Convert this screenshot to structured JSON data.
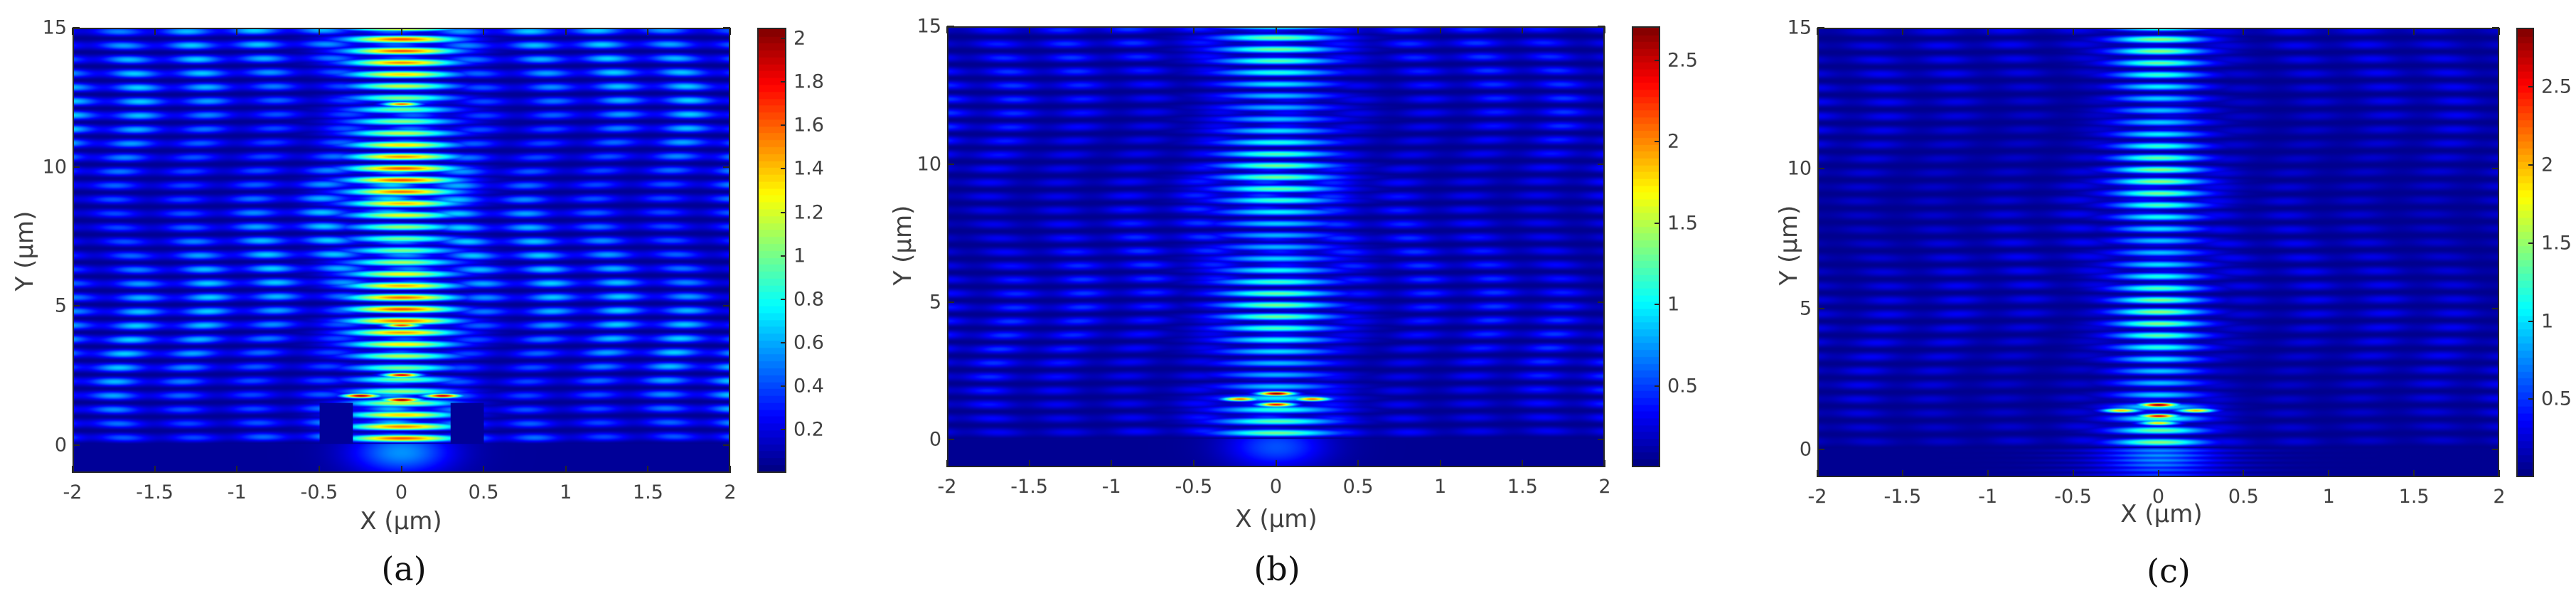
{
  "figure": {
    "panels": [
      {
        "id": "a",
        "label": "(a)",
        "xlabel": "X (μm)",
        "ylabel": "Y (μm)"
      },
      {
        "id": "b",
        "label": "(b)",
        "xlabel": "X (μm)",
        "ylabel": "Y (μm)"
      },
      {
        "id": "c",
        "label": "(c)",
        "xlabel": "X (μm)",
        "ylabel": "Y (μm)"
      }
    ]
  },
  "chart_data": [
    {
      "type": "heatmap",
      "panel_label": "(a)",
      "title": "",
      "xlabel": "X (μm)",
      "ylabel": "Y (μm)",
      "xlim": [
        -2,
        2
      ],
      "ylim": [
        -1,
        15
      ],
      "xticks": [
        -2,
        -1.5,
        -1,
        -0.5,
        0,
        0.5,
        1,
        1.5,
        2
      ],
      "xtick_labels": [
        "-2",
        "-1.5",
        "-1",
        "-0.5",
        "0",
        "0.5",
        "1",
        "1.5",
        "2"
      ],
      "yticks": [
        0,
        5,
        10,
        15
      ],
      "ytick_labels": [
        "0",
        "5",
        "10",
        "15"
      ],
      "colormap": "jet",
      "colorbar": {
        "range": [
          0,
          2.05
        ],
        "ticks": [
          0.2,
          0.4,
          0.6,
          0.8,
          1,
          1.2,
          1.4,
          1.6,
          1.8,
          2
        ],
        "tick_labels": [
          "0.2",
          "0.4",
          "0.6",
          "0.8",
          "1",
          "1.2",
          "1.4",
          "1.6",
          "1.8",
          "2"
        ]
      },
      "features": {
        "central_beam_halfwidth": 0.35,
        "central_beam_peak": 1.6,
        "background_level": 0.65,
        "hotspots": [
          [
            -0.25,
            1.75,
            2.0
          ],
          [
            0.0,
            1.6,
            2.05
          ],
          [
            0.25,
            1.75,
            1.95
          ],
          [
            0.0,
            2.5,
            1.9
          ],
          [
            0.0,
            4.3,
            1.7
          ],
          [
            0.0,
            12.3,
            1.6
          ]
        ],
        "substrate_below_y": 0,
        "pillar_gaps": [
          [
            -0.5,
            -0.3
          ],
          [
            0.3,
            0.5
          ]
        ],
        "pillar_top_y": 1.5
      },
      "grid": false,
      "legend": "colorbar-right"
    },
    {
      "type": "heatmap",
      "panel_label": "(b)",
      "title": "",
      "xlabel": "X (μm)",
      "ylabel": "Y (μm)",
      "xlim": [
        -2,
        2
      ],
      "ylim": [
        -1,
        15
      ],
      "xticks": [
        -2,
        -1.5,
        -1,
        -0.5,
        0,
        0.5,
        1,
        1.5,
        2
      ],
      "xtick_labels": [
        "-2",
        "-1.5",
        "-1",
        "-0.5",
        "0",
        "0.5",
        "1",
        "1.5",
        "2"
      ],
      "yticks": [
        0,
        5,
        10,
        15
      ],
      "ytick_labels": [
        "0",
        "5",
        "10",
        "15"
      ],
      "colormap": "jet",
      "colorbar": {
        "range": [
          0,
          2.71
        ],
        "ticks": [
          0.5,
          1,
          1.5,
          2,
          2.5
        ],
        "tick_labels": [
          "0.5",
          "1",
          "1.5",
          "2",
          "2.5"
        ]
      },
      "features": {
        "central_beam_halfwidth": 0.4,
        "central_beam_peak": 1.3,
        "background_level": 0.45,
        "hotspots": [
          [
            0.0,
            1.65,
            2.7
          ],
          [
            -0.22,
            1.45,
            2.1
          ],
          [
            0.22,
            1.45,
            2.1
          ],
          [
            0.0,
            1.25,
            2.4
          ]
        ],
        "substrate_below_y": 0
      },
      "grid": false,
      "legend": "colorbar-right"
    },
    {
      "type": "heatmap",
      "panel_label": "(c)",
      "title": "",
      "xlabel": "X (μm)",
      "ylabel": "Y (μm)",
      "xlim": [
        -2,
        2
      ],
      "ylim": [
        -1,
        15
      ],
      "xticks": [
        -2,
        -1.5,
        -1,
        -0.5,
        0,
        0.5,
        1,
        1.5,
        2
      ],
      "xtick_labels": [
        "-2",
        "-1.5",
        "-1",
        "-0.5",
        "0",
        "0.5",
        "1",
        "1.5",
        "2"
      ],
      "yticks": [
        0,
        5,
        10,
        15
      ],
      "ytick_labels": [
        "0",
        "5",
        "10",
        "15"
      ],
      "colormap": "jet",
      "colorbar": {
        "range": [
          0,
          2.88
        ],
        "ticks": [
          0.5,
          1,
          1.5,
          2,
          2.5
        ],
        "tick_labels": [
          "0.5",
          "1",
          "1.5",
          "2",
          "2.5"
        ]
      },
      "features": {
        "central_beam_halfwidth": 0.3,
        "central_beam_peak": 1.45,
        "background_level": 0.3,
        "hotspots": [
          [
            0.0,
            1.55,
            2.88
          ],
          [
            -0.22,
            1.35,
            2.0
          ],
          [
            0.22,
            1.35,
            2.0
          ],
          [
            0.0,
            1.15,
            2.6
          ],
          [
            0.0,
            0.9,
            1.9
          ]
        ],
        "substrate_below_y": 0
      },
      "grid": false,
      "legend": "colorbar-right"
    }
  ]
}
